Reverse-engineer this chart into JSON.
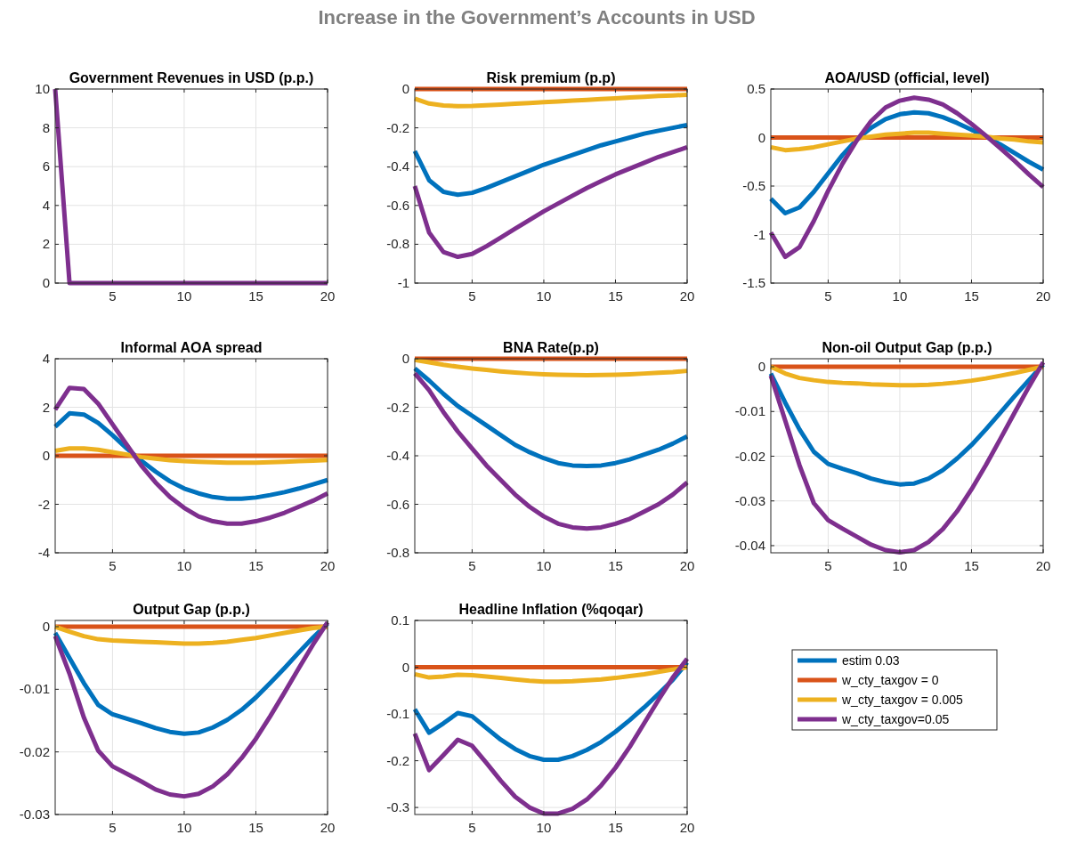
{
  "chart_data": [
    {
      "type": "other",
      "title": "Increase in the Government’s Accounts in USD"
    },
    {
      "type": "line",
      "title": "Government Revenues in USD (p.p.)",
      "x": [
        1,
        2,
        3,
        4,
        5,
        6,
        7,
        8,
        9,
        10,
        11,
        12,
        13,
        14,
        15,
        16,
        17,
        18,
        19,
        20
      ],
      "xlim": [
        1,
        20
      ],
      "xticks": [
        5,
        10,
        15,
        20
      ],
      "ylim": [
        0,
        10
      ],
      "yticks": [
        0,
        2,
        4,
        6,
        8,
        10
      ],
      "grid": true,
      "legend": false,
      "series": [
        {
          "color": "#7e2f8e",
          "values": [
            10,
            0,
            0,
            0,
            0,
            0,
            0,
            0,
            0,
            0,
            0,
            0,
            0,
            0,
            0,
            0,
            0,
            0,
            0,
            0
          ]
        }
      ]
    },
    {
      "type": "line",
      "title": "Risk premium (p.p)",
      "x": [
        1,
        2,
        3,
        4,
        5,
        6,
        7,
        8,
        9,
        10,
        11,
        12,
        13,
        14,
        15,
        16,
        17,
        18,
        19,
        20
      ],
      "xlim": [
        1,
        20
      ],
      "xticks": [
        5,
        10,
        15,
        20
      ],
      "ylim": [
        -1,
        0
      ],
      "yticks": [
        -1,
        -0.8,
        -0.6,
        -0.4,
        -0.2,
        0
      ],
      "grid": true,
      "legend": false,
      "series": [
        {
          "color": "#0072bd",
          "values": [
            -0.32,
            -0.47,
            -0.53,
            -0.545,
            -0.535,
            -0.51,
            -0.48,
            -0.45,
            -0.42,
            -0.39,
            -0.365,
            -0.34,
            -0.315,
            -0.29,
            -0.27,
            -0.25,
            -0.23,
            -0.215,
            -0.2,
            -0.185
          ]
        },
        {
          "color": "#d95319",
          "values": [
            0,
            0,
            0,
            0,
            0,
            0,
            0,
            0,
            0,
            0,
            0,
            0,
            0,
            0,
            0,
            0,
            0,
            0,
            0,
            0
          ]
        },
        {
          "color": "#edb120",
          "values": [
            -0.05,
            -0.075,
            -0.085,
            -0.088,
            -0.087,
            -0.084,
            -0.08,
            -0.076,
            -0.072,
            -0.068,
            -0.064,
            -0.06,
            -0.056,
            -0.052,
            -0.048,
            -0.044,
            -0.04,
            -0.036,
            -0.033,
            -0.03
          ]
        },
        {
          "color": "#7e2f8e",
          "values": [
            -0.5,
            -0.74,
            -0.84,
            -0.865,
            -0.85,
            -0.81,
            -0.765,
            -0.72,
            -0.675,
            -0.63,
            -0.59,
            -0.55,
            -0.51,
            -0.475,
            -0.44,
            -0.41,
            -0.38,
            -0.35,
            -0.325,
            -0.3
          ]
        }
      ]
    },
    {
      "type": "line",
      "title": "AOA/USD (official, level)",
      "x": [
        1,
        2,
        3,
        4,
        5,
        6,
        7,
        8,
        9,
        10,
        11,
        12,
        13,
        14,
        15,
        16,
        17,
        18,
        19,
        20
      ],
      "xlim": [
        1,
        20
      ],
      "xticks": [
        5,
        10,
        15,
        20
      ],
      "ylim": [
        -1.5,
        0.5
      ],
      "yticks": [
        -1.5,
        -1,
        -0.5,
        0,
        0.5
      ],
      "grid": true,
      "legend": false,
      "series": [
        {
          "color": "#0072bd",
          "values": [
            -0.63,
            -0.78,
            -0.72,
            -0.56,
            -0.37,
            -0.18,
            -0.02,
            0.1,
            0.19,
            0.24,
            0.26,
            0.25,
            0.21,
            0.15,
            0.08,
            0.01,
            -0.07,
            -0.16,
            -0.25,
            -0.33
          ]
        },
        {
          "color": "#d95319",
          "values": [
            0,
            0,
            0,
            0,
            0,
            0,
            0,
            0,
            0,
            0,
            0,
            0,
            0,
            0,
            0,
            0,
            0,
            0,
            0,
            0
          ]
        },
        {
          "color": "#edb120",
          "values": [
            -0.1,
            -0.13,
            -0.12,
            -0.1,
            -0.07,
            -0.04,
            -0.01,
            0.01,
            0.03,
            0.04,
            0.05,
            0.05,
            0.04,
            0.03,
            0.02,
            0.01,
            -0.01,
            -0.02,
            -0.04,
            -0.05
          ]
        },
        {
          "color": "#7e2f8e",
          "values": [
            -0.98,
            -1.23,
            -1.13,
            -0.86,
            -0.55,
            -0.27,
            -0.03,
            0.17,
            0.31,
            0.38,
            0.41,
            0.39,
            0.34,
            0.25,
            0.14,
            0.02,
            -0.11,
            -0.24,
            -0.38,
            -0.51
          ]
        }
      ]
    },
    {
      "type": "line",
      "title": "Informal AOA spread",
      "x": [
        1,
        2,
        3,
        4,
        5,
        6,
        7,
        8,
        9,
        10,
        11,
        12,
        13,
        14,
        15,
        16,
        17,
        18,
        19,
        20
      ],
      "xlim": [
        1,
        20
      ],
      "xticks": [
        5,
        10,
        15,
        20
      ],
      "ylim": [
        -4,
        4
      ],
      "yticks": [
        -4,
        -2,
        0,
        2,
        4
      ],
      "grid": true,
      "legend": false,
      "series": [
        {
          "color": "#0072bd",
          "values": [
            1.2,
            1.75,
            1.7,
            1.35,
            0.85,
            0.3,
            -0.2,
            -0.65,
            -1.05,
            -1.35,
            -1.55,
            -1.7,
            -1.77,
            -1.77,
            -1.72,
            -1.62,
            -1.5,
            -1.35,
            -1.18,
            -1.0
          ]
        },
        {
          "color": "#d95319",
          "values": [
            0,
            0,
            0,
            0,
            0,
            0,
            0,
            0,
            0,
            0,
            0,
            0,
            0,
            0,
            0,
            0,
            0,
            0,
            0,
            0
          ]
        },
        {
          "color": "#edb120",
          "values": [
            0.2,
            0.3,
            0.3,
            0.25,
            0.15,
            0.05,
            -0.05,
            -0.12,
            -0.18,
            -0.22,
            -0.25,
            -0.27,
            -0.28,
            -0.28,
            -0.28,
            -0.27,
            -0.25,
            -0.22,
            -0.2,
            -0.17
          ]
        },
        {
          "color": "#7e2f8e",
          "values": [
            1.9,
            2.8,
            2.75,
            2.15,
            1.3,
            0.45,
            -0.4,
            -1.1,
            -1.7,
            -2.15,
            -2.5,
            -2.7,
            -2.8,
            -2.8,
            -2.7,
            -2.55,
            -2.35,
            -2.1,
            -1.85,
            -1.55
          ]
        }
      ]
    },
    {
      "type": "line",
      "title": "BNA Rate(p.p)",
      "x": [
        1,
        2,
        3,
        4,
        5,
        6,
        7,
        8,
        9,
        10,
        11,
        12,
        13,
        14,
        15,
        16,
        17,
        18,
        19,
        20
      ],
      "xlim": [
        1,
        20
      ],
      "xticks": [
        5,
        10,
        15,
        20
      ],
      "ylim": [
        -0.8,
        0
      ],
      "yticks": [
        -0.8,
        -0.6,
        -0.4,
        -0.2,
        0
      ],
      "grid": true,
      "legend": false,
      "series": [
        {
          "color": "#0072bd",
          "values": [
            -0.04,
            -0.09,
            -0.145,
            -0.195,
            -0.235,
            -0.275,
            -0.315,
            -0.355,
            -0.385,
            -0.41,
            -0.43,
            -0.44,
            -0.442,
            -0.44,
            -0.43,
            -0.415,
            -0.395,
            -0.375,
            -0.35,
            -0.32
          ]
        },
        {
          "color": "#d95319",
          "values": [
            0,
            0,
            0,
            0,
            0,
            0,
            0,
            0,
            0,
            0,
            0,
            0,
            0,
            0,
            0,
            0,
            0,
            0,
            0,
            0
          ]
        },
        {
          "color": "#edb120",
          "values": [
            -0.005,
            -0.015,
            -0.025,
            -0.033,
            -0.04,
            -0.046,
            -0.052,
            -0.057,
            -0.061,
            -0.064,
            -0.066,
            -0.067,
            -0.068,
            -0.067,
            -0.066,
            -0.064,
            -0.061,
            -0.058,
            -0.055,
            -0.05
          ]
        },
        {
          "color": "#7e2f8e",
          "values": [
            -0.06,
            -0.13,
            -0.22,
            -0.3,
            -0.37,
            -0.44,
            -0.5,
            -0.56,
            -0.61,
            -0.65,
            -0.68,
            -0.695,
            -0.7,
            -0.695,
            -0.68,
            -0.66,
            -0.63,
            -0.6,
            -0.56,
            -0.51
          ]
        }
      ]
    },
    {
      "type": "line",
      "title": "Non-oil Output Gap (p.p.)",
      "x": [
        1,
        2,
        3,
        4,
        5,
        6,
        7,
        8,
        9,
        10,
        11,
        12,
        13,
        14,
        15,
        16,
        17,
        18,
        19,
        20
      ],
      "xlim": [
        1,
        20
      ],
      "xticks": [
        5,
        10,
        15,
        20
      ],
      "ylim": [
        -0.0416,
        0.0018
      ],
      "yticks": [
        -0.04,
        -0.03,
        -0.02,
        -0.01,
        0
      ],
      "grid": true,
      "legend": false,
      "series": [
        {
          "color": "#0072bd",
          "values": [
            -0.0015,
            -0.008,
            -0.014,
            -0.019,
            -0.0217,
            -0.0228,
            -0.0238,
            -0.025,
            -0.0258,
            -0.0263,
            -0.0261,
            -0.025,
            -0.0231,
            -0.0205,
            -0.0175,
            -0.014,
            -0.0103,
            -0.0066,
            -0.003,
            0.0005
          ]
        },
        {
          "color": "#d95319",
          "values": [
            0,
            0,
            0,
            0,
            0,
            0,
            0,
            0,
            0,
            0,
            0,
            0,
            0,
            0,
            0,
            0,
            0,
            0,
            0,
            0
          ]
        },
        {
          "color": "#edb120",
          "values": [
            0,
            -0.0015,
            -0.0025,
            -0.003,
            -0.0034,
            -0.0036,
            -0.0037,
            -0.0039,
            -0.004,
            -0.0041,
            -0.0041,
            -0.004,
            -0.0038,
            -0.0035,
            -0.0031,
            -0.0026,
            -0.002,
            -0.0014,
            -0.0007,
            0
          ]
        },
        {
          "color": "#7e2f8e",
          "values": [
            -0.002,
            -0.012,
            -0.022,
            -0.0305,
            -0.0343,
            -0.0362,
            -0.038,
            -0.0398,
            -0.041,
            -0.0415,
            -0.041,
            -0.0392,
            -0.0363,
            -0.0323,
            -0.0274,
            -0.022,
            -0.0162,
            -0.0103,
            -0.0045,
            0.001
          ]
        }
      ]
    },
    {
      "type": "line",
      "title": "Output Gap (p.p.)",
      "x": [
        1,
        2,
        3,
        4,
        5,
        6,
        7,
        8,
        9,
        10,
        11,
        12,
        13,
        14,
        15,
        16,
        17,
        18,
        19,
        20
      ],
      "xlim": [
        1,
        20
      ],
      "xticks": [
        5,
        10,
        15,
        20
      ],
      "ylim": [
        -0.03,
        0.001
      ],
      "yticks": [
        -0.03,
        -0.02,
        -0.01,
        0
      ],
      "grid": true,
      "legend": false,
      "series": [
        {
          "color": "#0072bd",
          "values": [
            -0.001,
            -0.005,
            -0.009,
            -0.0125,
            -0.014,
            -0.0147,
            -0.0154,
            -0.0162,
            -0.0168,
            -0.0171,
            -0.0169,
            -0.0161,
            -0.0149,
            -0.0133,
            -0.0113,
            -0.009,
            -0.0066,
            -0.0041,
            -0.0017,
            0.0005
          ]
        },
        {
          "color": "#d95319",
          "values": [
            0,
            0,
            0,
            0,
            0,
            0,
            0,
            0,
            0,
            0,
            0,
            0,
            0,
            0,
            0,
            0,
            0,
            0,
            0,
            0
          ]
        },
        {
          "color": "#edb120",
          "values": [
            0,
            -0.0008,
            -0.0015,
            -0.002,
            -0.0022,
            -0.0023,
            -0.0024,
            -0.0025,
            -0.0026,
            -0.0027,
            -0.0027,
            -0.0026,
            -0.0024,
            -0.0021,
            -0.0018,
            -0.0014,
            -0.001,
            -0.0006,
            -0.0002,
            0
          ]
        },
        {
          "color": "#7e2f8e",
          "values": [
            -0.0015,
            -0.0075,
            -0.0145,
            -0.0198,
            -0.0223,
            -0.0235,
            -0.0247,
            -0.026,
            -0.0268,
            -0.0271,
            -0.0267,
            -0.0255,
            -0.0236,
            -0.021,
            -0.0179,
            -0.0143,
            -0.0105,
            -0.0066,
            -0.0028,
            0.0007
          ]
        }
      ]
    },
    {
      "type": "line",
      "title": "Headline Inflation (%qoqar)",
      "x": [
        1,
        2,
        3,
        4,
        5,
        6,
        7,
        8,
        9,
        10,
        11,
        12,
        13,
        14,
        15,
        16,
        17,
        18,
        19,
        20
      ],
      "xlim": [
        1,
        20
      ],
      "xticks": [
        5,
        10,
        15,
        20
      ],
      "ylim": [
        -0.315,
        0.1
      ],
      "yticks": [
        -0.3,
        -0.2,
        -0.1,
        0,
        0.1
      ],
      "grid": true,
      "legend": "right",
      "series": [
        {
          "name": "estim 0.03",
          "color": "#0072bd",
          "values": [
            -0.09,
            -0.14,
            -0.12,
            -0.098,
            -0.105,
            -0.13,
            -0.155,
            -0.175,
            -0.19,
            -0.198,
            -0.198,
            -0.19,
            -0.177,
            -0.16,
            -0.138,
            -0.113,
            -0.086,
            -0.057,
            -0.027,
            0.01
          ]
        },
        {
          "name": "w_cty_taxgov = 0",
          "color": "#d95319",
          "values": [
            0,
            0,
            0,
            0,
            0,
            0,
            0,
            0,
            0,
            0,
            0,
            0,
            0,
            0,
            0,
            0,
            0,
            0,
            0,
            0
          ]
        },
        {
          "name": "w_cty_taxgov = 0.005",
          "color": "#edb120",
          "values": [
            -0.015,
            -0.022,
            -0.02,
            -0.016,
            -0.017,
            -0.02,
            -0.023,
            -0.026,
            -0.029,
            -0.031,
            -0.031,
            -0.03,
            -0.028,
            -0.026,
            -0.023,
            -0.019,
            -0.015,
            -0.01,
            -0.005,
            0
          ]
        },
        {
          "name": "w_cty_taxgov=0.05",
          "color": "#7e2f8e",
          "values": [
            -0.142,
            -0.22,
            -0.188,
            -0.155,
            -0.168,
            -0.205,
            -0.243,
            -0.277,
            -0.3,
            -0.313,
            -0.313,
            -0.303,
            -0.283,
            -0.253,
            -0.215,
            -0.17,
            -0.12,
            -0.07,
            -0.022,
            0.018
          ]
        }
      ]
    }
  ]
}
